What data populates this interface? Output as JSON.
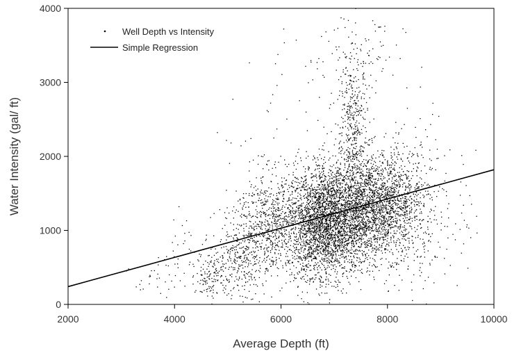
{
  "chart_data": {
    "type": "scatter",
    "xlabel": "Average Depth (ft)",
    "ylabel": "Water Intensity (gal/ ft)",
    "xlim": [
      2000,
      10000
    ],
    "ylim": [
      0,
      4000
    ],
    "xticks": [
      "2000",
      "4000",
      "6000",
      "8000",
      "10000"
    ],
    "yticks": [
      "0",
      "1000",
      "2000",
      "3000",
      "4000"
    ],
    "xtick_values": [
      2000,
      4000,
      6000,
      8000,
      10000
    ],
    "ytick_values": [
      0,
      1000,
      2000,
      3000,
      4000
    ],
    "grid": false,
    "legend_position": "top-left",
    "series": [
      {
        "name": "Well Depth vs Intensity",
        "kind": "scatter",
        "color": "#000000",
        "clusters": [
          {
            "cx": 7000,
            "cy": 1150,
            "sx": 450,
            "sy": 380,
            "n": 2600
          },
          {
            "cx": 7900,
            "cy": 1350,
            "sx": 380,
            "sy": 350,
            "n": 1500
          },
          {
            "cx": 7350,
            "cy": 2300,
            "sx": 150,
            "sy": 550,
            "n": 450
          },
          {
            "cx": 6700,
            "cy": 1000,
            "sx": 250,
            "sy": 350,
            "n": 700
          },
          {
            "cx": 5800,
            "cy": 1100,
            "sx": 350,
            "sy": 350,
            "n": 700
          },
          {
            "cx": 5200,
            "cy": 600,
            "sx": 250,
            "sy": 250,
            "n": 280
          },
          {
            "cx": 4700,
            "cy": 400,
            "sx": 150,
            "sy": 180,
            "n": 130
          },
          {
            "cx": 4100,
            "cy": 700,
            "sx": 150,
            "sy": 250,
            "n": 35
          },
          {
            "cx": 3600,
            "cy": 350,
            "sx": 200,
            "sy": 150,
            "n": 25
          },
          {
            "cx": 8600,
            "cy": 1300,
            "sx": 300,
            "sy": 600,
            "n": 220
          },
          {
            "cx": 9300,
            "cy": 1200,
            "sx": 250,
            "sy": 400,
            "n": 30
          },
          {
            "cx": 7500,
            "cy": 3300,
            "sx": 400,
            "sy": 350,
            "n": 90
          },
          {
            "cx": 6000,
            "cy": 2500,
            "sx": 500,
            "sy": 600,
            "n": 40
          }
        ]
      },
      {
        "name": "Simple Regression",
        "kind": "line",
        "color": "#000000",
        "x": [
          2000,
          10000
        ],
        "y": [
          240,
          1820
        ]
      }
    ]
  }
}
